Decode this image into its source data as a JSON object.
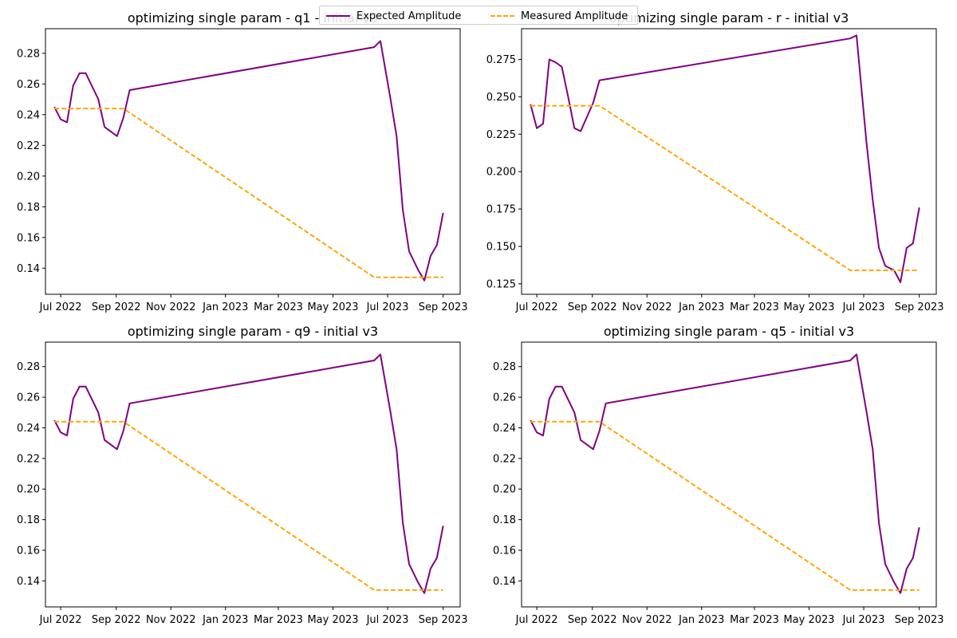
{
  "legend": {
    "items": [
      {
        "label": "Expected Amplitude",
        "color": "#800080",
        "style": "solid"
      },
      {
        "label": "Measured Amplitude",
        "color": "#FFA500",
        "style": "dashed"
      }
    ],
    "placement": "top-center"
  },
  "chart_data": [
    {
      "type": "line",
      "title": "optimizing single param - q1 - initial v3",
      "xlabel": "",
      "ylabel": "",
      "x_scale": "date",
      "xlim": [
        "2022-06-14",
        "2023-09-20"
      ],
      "ylim": [
        0.123,
        0.296
      ],
      "x_ticks": [
        "Jul 2022",
        "Sep 2022",
        "Nov 2022",
        "Jan 2023",
        "Mar 2023",
        "May 2023",
        "Jul 2023",
        "Sep 2023"
      ],
      "y_ticks": [
        "0.14",
        "0.16",
        "0.18",
        "0.20",
        "0.22",
        "0.24",
        "0.26",
        "0.28"
      ],
      "grid": false,
      "series": [
        {
          "name": "Expected Amplitude",
          "color": "#800080",
          "style": "solid",
          "x": [
            "2022-06-24",
            "2022-07-01",
            "2022-07-08",
            "2022-07-15",
            "2022-07-22",
            "2022-07-29",
            "2022-08-12",
            "2022-08-19",
            "2022-09-02",
            "2022-09-09",
            "2022-09-16",
            "2023-06-16",
            "2023-06-23",
            "2023-07-04",
            "2023-07-11",
            "2023-07-18",
            "2023-07-25",
            "2023-08-04",
            "2023-08-11",
            "2023-08-18",
            "2023-08-25",
            "2023-09-01"
          ],
          "y": [
            0.245,
            0.237,
            0.235,
            0.259,
            0.267,
            0.267,
            0.25,
            0.232,
            0.226,
            0.238,
            0.256,
            0.284,
            0.288,
            0.251,
            0.226,
            0.178,
            0.151,
            0.139,
            0.132,
            0.148,
            0.155,
            0.176
          ]
        },
        {
          "name": "Measured Amplitude",
          "color": "#FFA500",
          "style": "dashed",
          "x": [
            "2022-06-24",
            "2022-09-09",
            "2023-06-16",
            "2023-09-01"
          ],
          "y": [
            0.244,
            0.244,
            0.134,
            0.134
          ]
        }
      ]
    },
    {
      "type": "line",
      "title": "optimizing single param - r - initial v3",
      "xlabel": "",
      "ylabel": "",
      "x_scale": "date",
      "xlim": [
        "2022-06-14",
        "2023-09-20"
      ],
      "ylim": [
        0.118,
        0.2955
      ],
      "x_ticks": [
        "Jul 2022",
        "Sep 2022",
        "Nov 2022",
        "Jan 2023",
        "Mar 2023",
        "May 2023",
        "Jul 2023",
        "Sep 2023"
      ],
      "y_ticks": [
        "0.125",
        "0.150",
        "0.175",
        "0.200",
        "0.225",
        "0.250",
        "0.275"
      ],
      "grid": false,
      "series": [
        {
          "name": "Expected Amplitude",
          "color": "#800080",
          "style": "solid",
          "x": [
            "2022-06-24",
            "2022-07-01",
            "2022-07-08",
            "2022-07-15",
            "2022-07-22",
            "2022-07-29",
            "2022-08-05",
            "2022-08-12",
            "2022-08-19",
            "2022-09-02",
            "2022-09-09",
            "2023-06-16",
            "2023-06-23",
            "2023-07-04",
            "2023-07-11",
            "2023-07-18",
            "2023-07-25",
            "2023-08-04",
            "2023-08-11",
            "2023-08-18",
            "2023-08-25",
            "2023-09-01"
          ],
          "y": [
            0.245,
            0.229,
            0.232,
            0.275,
            0.273,
            0.27,
            0.25,
            0.229,
            0.227,
            0.246,
            0.261,
            0.289,
            0.291,
            0.22,
            0.181,
            0.149,
            0.137,
            0.134,
            0.126,
            0.149,
            0.152,
            0.176
          ]
        },
        {
          "name": "Measured Amplitude",
          "color": "#FFA500",
          "style": "dashed",
          "x": [
            "2022-06-24",
            "2022-09-09",
            "2023-06-16",
            "2023-09-01"
          ],
          "y": [
            0.244,
            0.244,
            0.134,
            0.134
          ]
        }
      ]
    },
    {
      "type": "line",
      "title": "optimizing single param - q9 - initial v3",
      "xlabel": "",
      "ylabel": "",
      "x_scale": "date",
      "xlim": [
        "2022-06-14",
        "2023-09-20"
      ],
      "ylim": [
        0.123,
        0.296
      ],
      "x_ticks": [
        "Jul 2022",
        "Sep 2022",
        "Nov 2022",
        "Jan 2023",
        "Mar 2023",
        "May 2023",
        "Jul 2023",
        "Sep 2023"
      ],
      "y_ticks": [
        "0.14",
        "0.16",
        "0.18",
        "0.20",
        "0.22",
        "0.24",
        "0.26",
        "0.28"
      ],
      "grid": false,
      "series": [
        {
          "name": "Expected Amplitude",
          "color": "#800080",
          "style": "solid",
          "x": [
            "2022-06-24",
            "2022-07-01",
            "2022-07-08",
            "2022-07-15",
            "2022-07-22",
            "2022-07-29",
            "2022-08-12",
            "2022-08-19",
            "2022-09-02",
            "2022-09-09",
            "2022-09-16",
            "2023-06-16",
            "2023-06-23",
            "2023-07-04",
            "2023-07-11",
            "2023-07-18",
            "2023-07-25",
            "2023-08-04",
            "2023-08-11",
            "2023-08-18",
            "2023-08-25",
            "2023-09-01"
          ],
          "y": [
            0.245,
            0.237,
            0.235,
            0.259,
            0.267,
            0.267,
            0.25,
            0.232,
            0.226,
            0.238,
            0.256,
            0.284,
            0.288,
            0.251,
            0.226,
            0.178,
            0.151,
            0.139,
            0.132,
            0.148,
            0.155,
            0.176
          ]
        },
        {
          "name": "Measured Amplitude",
          "color": "#FFA500",
          "style": "dashed",
          "x": [
            "2022-06-24",
            "2022-09-09",
            "2023-06-16",
            "2023-09-01"
          ],
          "y": [
            0.244,
            0.244,
            0.134,
            0.134
          ]
        }
      ]
    },
    {
      "type": "line",
      "title": "optimizing single param - q5 - initial v3",
      "xlabel": "",
      "ylabel": "",
      "x_scale": "date",
      "xlim": [
        "2022-06-14",
        "2023-09-20"
      ],
      "ylim": [
        0.123,
        0.296
      ],
      "x_ticks": [
        "Jul 2022",
        "Sep 2022",
        "Nov 2022",
        "Jan 2023",
        "Mar 2023",
        "May 2023",
        "Jul 2023",
        "Sep 2023"
      ],
      "y_ticks": [
        "0.14",
        "0.16",
        "0.18",
        "0.20",
        "0.22",
        "0.24",
        "0.26",
        "0.28"
      ],
      "grid": false,
      "series": [
        {
          "name": "Expected Amplitude",
          "color": "#800080",
          "style": "solid",
          "x": [
            "2022-06-24",
            "2022-07-01",
            "2022-07-08",
            "2022-07-15",
            "2022-07-22",
            "2022-07-29",
            "2022-08-12",
            "2022-08-19",
            "2022-09-02",
            "2022-09-09",
            "2022-09-16",
            "2023-06-16",
            "2023-06-23",
            "2023-07-04",
            "2023-07-11",
            "2023-07-18",
            "2023-07-25",
            "2023-08-04",
            "2023-08-11",
            "2023-08-18",
            "2023-08-25",
            "2023-09-01"
          ],
          "y": [
            0.245,
            0.237,
            0.235,
            0.259,
            0.267,
            0.267,
            0.25,
            0.232,
            0.226,
            0.238,
            0.256,
            0.284,
            0.288,
            0.251,
            0.226,
            0.178,
            0.151,
            0.139,
            0.132,
            0.148,
            0.155,
            0.175
          ]
        },
        {
          "name": "Measured Amplitude",
          "color": "#FFA500",
          "style": "dashed",
          "x": [
            "2022-06-24",
            "2022-09-09",
            "2023-06-16",
            "2023-09-01"
          ],
          "y": [
            0.244,
            0.244,
            0.134,
            0.134
          ]
        }
      ]
    }
  ]
}
